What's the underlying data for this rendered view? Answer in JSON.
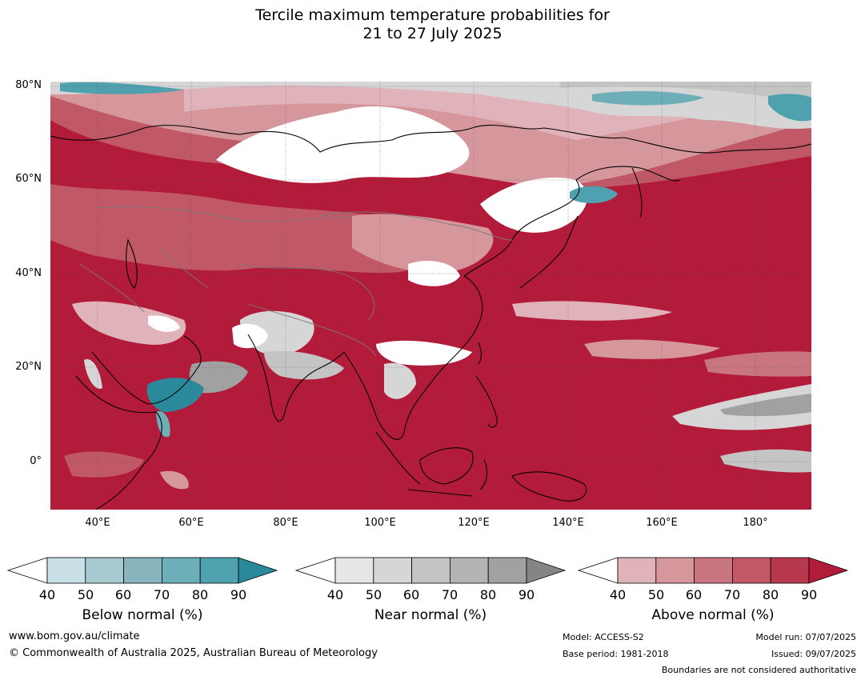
{
  "title": {
    "line1": "Tercile maximum temperature probabilities for",
    "line2": "21 to 27 July 2025"
  },
  "axes": {
    "lat_labels": [
      "80°N",
      "60°N",
      "40°N",
      "20°N",
      "0°"
    ],
    "lon_labels": [
      "40°E",
      "60°E",
      "80°E",
      "100°E",
      "120°E",
      "140°E",
      "160°E",
      "180°"
    ]
  },
  "map": {
    "lon_range": [
      30,
      192
    ],
    "lat_range": [
      -10,
      81
    ],
    "dominant_category": "above-normal"
  },
  "legends": [
    {
      "title": "Below normal (%)",
      "ticks": [
        "40",
        "50",
        "60",
        "70",
        "80",
        "90"
      ],
      "colors": [
        "#c9e0e6",
        "#a7c9d0",
        "#89b5bf",
        "#6daeb9",
        "#4fa1b0",
        "#2a8a9c"
      ]
    },
    {
      "title": "Near normal (%)",
      "ticks": [
        "40",
        "50",
        "60",
        "70",
        "80",
        "90"
      ],
      "colors": [
        "#e6e6e6",
        "#d6d6d6",
        "#c4c4c4",
        "#b3b3b3",
        "#a1a1a1",
        "#858585"
      ]
    },
    {
      "title": "Above normal (%)",
      "ticks": [
        "40",
        "50",
        "60",
        "70",
        "80",
        "90"
      ],
      "colors": [
        "#dfb3b9",
        "#d5969c",
        "#c87580",
        "#c05866",
        "#b8384d",
        "#b31b3a"
      ]
    }
  ],
  "footer": {
    "url": "www.bom.gov.au/climate",
    "copyright": "© Commonwealth of Australia 2025, Australian Bureau of Meteorology",
    "model": "Model: ACCESS-S2",
    "base_period": "Base period: 1981-2018",
    "model_run": "Model run: 07/07/2025",
    "issued": "Issued: 09/07/2025",
    "disclaimer": "Boundaries are not considered authoritative"
  }
}
